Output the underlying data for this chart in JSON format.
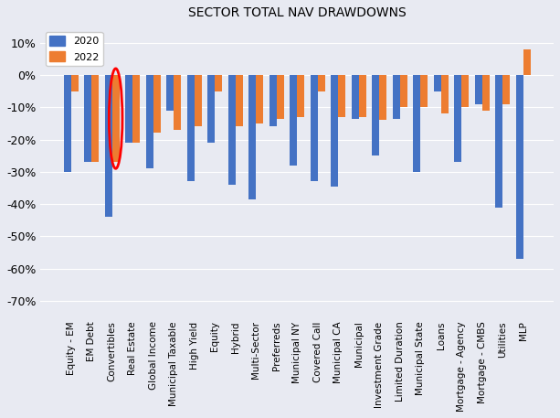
{
  "title": "SECTOR TOTAL NAV DRAWDOWNS",
  "categories": [
    "Equity - EM",
    "EM Debt",
    "Convertibles",
    "Real Estate",
    "Global Income",
    "Municipal Taxable",
    "High Yield",
    "Equity",
    "Hybrid",
    "Multi-Sector",
    "Preferreds",
    "Municipal NY",
    "Covered Call",
    "Municipal CA",
    "Municipal",
    "Investment Grade",
    "Limited Duration",
    "Municipal State",
    "Loans",
    "Mortgage - Agency",
    "Mortgage - CMBS",
    "Utilities",
    "MLP"
  ],
  "values_2020": [
    -30.0,
    -27.0,
    -44.0,
    -21.0,
    -29.0,
    -11.0,
    -33.0,
    -21.0,
    -34.0,
    -38.5,
    -16.0,
    -28.0,
    -33.0,
    -34.5,
    -13.5,
    -25.0,
    -13.5,
    -30.0,
    -5.0,
    -27.0,
    -9.0,
    -41.0,
    -57.0
  ],
  "values_2022": [
    -5.0,
    -27.0,
    -27.0,
    -21.0,
    -18.0,
    -17.0,
    -16.0,
    -5.0,
    -16.0,
    -15.0,
    -13.5,
    -13.0,
    -5.0,
    -13.0,
    -13.0,
    -14.0,
    -10.0,
    -10.0,
    -12.0,
    -10.0,
    -11.0,
    -9.0,
    8.0
  ],
  "color_2020": "#4472c4",
  "color_2022": "#ed7d31",
  "ylim": [
    -75,
    15
  ],
  "background_color": "#e8eaf2",
  "grid_color": "#ffffff",
  "circle_category": "Convertibles",
  "circle_value_2022": -27.0
}
